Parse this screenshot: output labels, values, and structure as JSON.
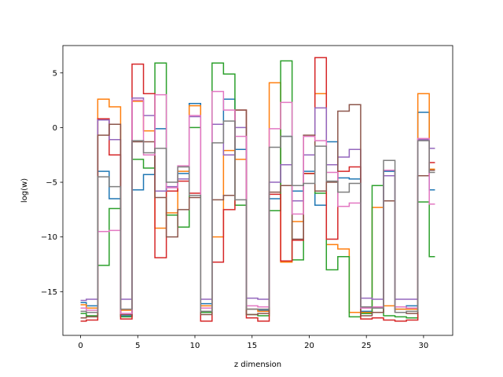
{
  "chart_data": {
    "type": "line",
    "step": "mid",
    "title": "",
    "xlabel": "z dimension",
    "ylabel": "log(w)",
    "xlim": [
      -1.55,
      32.55
    ],
    "ylim": [
      -19.0,
      7.5
    ],
    "xticks": [
      0,
      5,
      10,
      15,
      20,
      25,
      30
    ],
    "yticks": [
      -15,
      -10,
      -5,
      0,
      5
    ],
    "grid": false,
    "legend": "none",
    "x": [
      0,
      1,
      2,
      3,
      4,
      5,
      6,
      7,
      8,
      9,
      10,
      11,
      12,
      13,
      14,
      15,
      16,
      17,
      18,
      19,
      20,
      21,
      22,
      23,
      24,
      25,
      26,
      27,
      28,
      29,
      30,
      31
    ],
    "series": [
      {
        "color": "#1f77b4",
        "values": [
          -16.0,
          -16.3,
          -4.0,
          -6.5,
          -17.2,
          -5.7,
          -4.3,
          -0.1,
          -5.8,
          -4.2,
          2.2,
          -16.1,
          0.3,
          2.6,
          -2.0,
          -16.6,
          -16.7,
          -6.5,
          -0.8,
          -5.8,
          -4.0,
          -7.1,
          -1.3,
          -4.6,
          -4.7,
          -16.8,
          -16.9,
          -4.0,
          -16.6,
          -16.3,
          1.4,
          -5.7
        ]
      },
      {
        "color": "#ff7f0e",
        "values": [
          -16.2,
          -16.5,
          2.6,
          1.9,
          -16.7,
          2.4,
          -0.3,
          -9.2,
          -7.8,
          -4.0,
          2.0,
          -16.3,
          -10.0,
          -2.1,
          -2.9,
          -16.6,
          -16.8,
          4.1,
          -12.3,
          -8.6,
          -4.2,
          3.1,
          -10.7,
          -11.1,
          -16.9,
          -16.9,
          -7.3,
          -16.3,
          -16.6,
          -16.6,
          3.1,
          -3.8
        ]
      },
      {
        "color": "#2ca02c",
        "values": [
          -17.0,
          -17.2,
          -12.6,
          -7.4,
          -17.3,
          -2.9,
          -3.7,
          5.9,
          -8.0,
          -9.1,
          0.0,
          -16.9,
          5.9,
          4.9,
          -7.1,
          -17.1,
          -17.2,
          -7.6,
          6.1,
          -12.1,
          -4.2,
          -6.0,
          -13.0,
          -11.8,
          -17.3,
          -17.0,
          -5.3,
          -17.2,
          -17.3,
          -17.4,
          -6.8,
          -11.8
        ]
      },
      {
        "color": "#d62728",
        "values": [
          -17.7,
          -17.6,
          0.8,
          -2.5,
          -17.5,
          5.8,
          3.1,
          -11.9,
          -5.8,
          -4.9,
          -6.0,
          -17.7,
          -12.3,
          -7.5,
          1.6,
          -17.4,
          -17.7,
          -6.1,
          -12.2,
          -10.3,
          -4.2,
          6.4,
          -10.2,
          -4.0,
          -3.6,
          -17.5,
          -17.4,
          -17.6,
          -17.7,
          -17.6,
          -4.4,
          -3.2
        ]
      },
      {
        "color": "#9467bd",
        "values": [
          -15.8,
          -15.7,
          0.7,
          -1.1,
          -15.7,
          2.7,
          1.1,
          -5.8,
          -5.4,
          -4.7,
          1.0,
          -15.7,
          0.3,
          -2.5,
          0.0,
          -15.6,
          -15.7,
          -5.0,
          -3.4,
          -6.7,
          -2.5,
          1.8,
          -3.4,
          -2.7,
          -2.0,
          -15.6,
          -15.7,
          -4.4,
          -15.7,
          -15.7,
          -1.1,
          -1.9
        ]
      },
      {
        "color": "#8c564b",
        "values": [
          -17.4,
          -17.3,
          -0.7,
          0.3,
          -17.1,
          -1.3,
          -1.3,
          -6.4,
          -10.0,
          -7.5,
          -6.4,
          -17.1,
          -6.6,
          -6.2,
          1.6,
          -17.1,
          -17.0,
          -5.9,
          -5.3,
          -10.2,
          -0.7,
          -5.8,
          -5.0,
          1.5,
          2.1,
          -17.2,
          -16.9,
          -6.7,
          -16.9,
          -17.0,
          -4.4,
          -3.9
        ]
      },
      {
        "color": "#e377c2",
        "values": [
          -16.5,
          -16.7,
          -9.5,
          -9.4,
          -17.0,
          2.5,
          -2.5,
          3.0,
          -5.5,
          -3.5,
          1.1,
          -16.5,
          3.3,
          1.6,
          -0.8,
          -16.3,
          -16.4,
          -0.1,
          2.3,
          -7.9,
          -0.8,
          -1.2,
          -4.1,
          -7.2,
          -6.9,
          -16.5,
          -16.4,
          -3.9,
          -16.4,
          -16.5,
          -1.0,
          -7.0
        ]
      },
      {
        "color": "#7f7f7f",
        "values": [
          -16.8,
          -16.9,
          -4.5,
          -5.4,
          -16.6,
          -1.2,
          -2.3,
          -1.9,
          -5.0,
          -3.6,
          -6.2,
          -16.8,
          -1.4,
          0.6,
          -6.6,
          -16.6,
          -16.6,
          -1.8,
          -0.8,
          -5.3,
          -5.1,
          -1.7,
          -4.9,
          -5.9,
          -5.1,
          -16.4,
          -16.5,
          -3.0,
          -16.9,
          -16.8,
          -1.2,
          -4.1
        ]
      }
    ]
  }
}
